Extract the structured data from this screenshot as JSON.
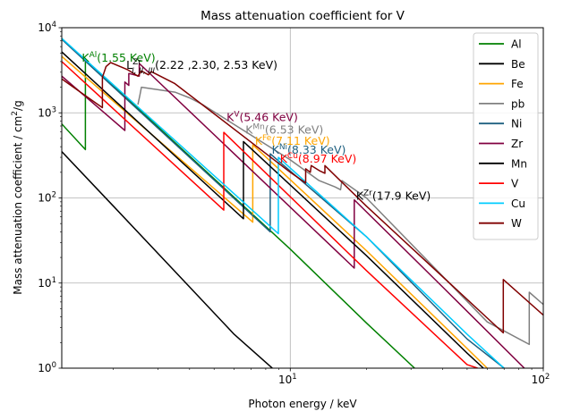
{
  "chart_data": {
    "type": "line",
    "title": "Mass attenuation coefficient for V",
    "xlabel": "Photon energy / keV",
    "ylabel": "Mass attenuation coefficient / cm",
    "ylabel_sup": "2",
    "ylabel_tail": "/g",
    "xscale": "log",
    "yscale": "log",
    "xlim": [
      1.25,
      100
    ],
    "ylim": [
      1,
      10000
    ],
    "grid": true,
    "legend_position": "top-right",
    "x_ticks": [
      {
        "value": 10,
        "base": "10",
        "exp": "1"
      },
      {
        "value": 100,
        "base": "10",
        "exp": "2"
      }
    ],
    "y_ticks": [
      {
        "value": 1,
        "base": "10",
        "exp": "0"
      },
      {
        "value": 10,
        "base": "10",
        "exp": "1"
      },
      {
        "value": 100,
        "base": "10",
        "exp": "2"
      },
      {
        "value": 1000,
        "base": "10",
        "exp": "3"
      },
      {
        "value": 10000,
        "base": "10",
        "exp": "4"
      }
    ],
    "series": [
      {
        "name": "Al",
        "color": "#008000",
        "points": [
          [
            1.25,
            740
          ],
          [
            1.55,
            370
          ],
          [
            1.55,
            4200
          ],
          [
            4,
            310
          ],
          [
            10,
            25
          ],
          [
            20,
            3.4
          ],
          [
            31,
            1
          ]
        ]
      },
      {
        "name": "Be",
        "color": "#000000",
        "points": [
          [
            1.25,
            350
          ],
          [
            2,
            80
          ],
          [
            4,
            9
          ],
          [
            6,
            2.5
          ],
          [
            10,
            0.65
          ]
        ]
      },
      {
        "name": "Fe",
        "color": "#ffa500",
        "points": [
          [
            1.25,
            4600
          ],
          [
            7.11,
            52
          ],
          [
            7.11,
            420
          ],
          [
            20,
            24
          ],
          [
            50,
            1.7
          ],
          [
            60,
            1
          ]
        ]
      },
      {
        "name": "pb",
        "color": "#808080",
        "points": [
          [
            2.5,
            1250
          ],
          [
            2.55,
            1650
          ],
          [
            2.58,
            2000
          ],
          [
            3.5,
            1750
          ],
          [
            4,
            1500
          ],
          [
            4.5,
            1250
          ],
          [
            10,
            280
          ],
          [
            13,
            160
          ],
          [
            15,
            135
          ],
          [
            15.8,
            125
          ],
          [
            16,
            160
          ],
          [
            20,
            100
          ],
          [
            60,
            3.5
          ],
          [
            88,
            1.9
          ],
          [
            88,
            7.8
          ],
          [
            100,
            5.6
          ]
        ]
      },
      {
        "name": "Ni",
        "color": "#1f6080",
        "points": [
          [
            1.25,
            7300
          ],
          [
            8.33,
            40
          ],
          [
            8.33,
            330
          ],
          [
            20,
            35
          ],
          [
            50,
            2.2
          ],
          [
            70,
            1
          ]
        ]
      },
      {
        "name": "Zr",
        "color": "#800040",
        "points": [
          [
            1.25,
            2700
          ],
          [
            2.22,
            620
          ],
          [
            2.22,
            2300
          ],
          [
            2.3,
            2100
          ],
          [
            2.3,
            2900
          ],
          [
            2.53,
            2700
          ],
          [
            2.53,
            3800
          ],
          [
            17.9,
            15
          ],
          [
            17.9,
            95
          ],
          [
            40,
            9
          ],
          [
            100,
            0.6
          ]
        ]
      },
      {
        "name": "Mn",
        "color": "#000000",
        "points": [
          [
            1.25,
            5200
          ],
          [
            6.53,
            57
          ],
          [
            6.53,
            460
          ],
          [
            20,
            21
          ],
          [
            50,
            1.5
          ],
          [
            58,
            1
          ]
        ]
      },
      {
        "name": "V",
        "color": "#ff0000",
        "points": [
          [
            1.25,
            4000
          ],
          [
            5.46,
            72
          ],
          [
            5.46,
            590
          ],
          [
            20,
            14
          ],
          [
            50,
            1.1
          ],
          [
            55,
            1
          ]
        ]
      },
      {
        "name": "Cu",
        "color": "#00ccff",
        "points": [
          [
            1.25,
            7500
          ],
          [
            8.97,
            38
          ],
          [
            8.97,
            300
          ],
          [
            20,
            35
          ],
          [
            50,
            2.5
          ],
          [
            70,
            1
          ]
        ]
      },
      {
        "name": "W",
        "color": "#800000",
        "points": [
          [
            1.25,
            2500
          ],
          [
            1.81,
            1150
          ],
          [
            1.81,
            2600
          ],
          [
            1.87,
            3500
          ],
          [
            1.95,
            3900
          ],
          [
            2.28,
            3200
          ],
          [
            2.5,
            2700
          ],
          [
            2.58,
            3100
          ],
          [
            2.75,
            2800
          ],
          [
            2.82,
            3050
          ],
          [
            3.5,
            2200
          ],
          [
            10,
            200
          ],
          [
            11.5,
            150
          ],
          [
            11.5,
            220
          ],
          [
            12,
            200
          ],
          [
            12.1,
            240
          ],
          [
            13,
            210
          ],
          [
            13.7,
            195
          ],
          [
            13.7,
            240
          ],
          [
            20,
            80
          ],
          [
            69.5,
            2.6
          ],
          [
            69.5,
            11
          ],
          [
            100,
            4.2
          ]
        ]
      }
    ],
    "annotations": [
      {
        "text": "K",
        "sup": "Al",
        "tail": "(1.55  KeV)",
        "color": "#008000",
        "x": 1.5,
        "y": 4000
      },
      {
        "text": "L",
        "sup": "Zr",
        "sub": "I, II, III",
        "tail": "(2.22 ,2.30, 2.53 KeV)",
        "color": "#000000",
        "x": 2.25,
        "y": 3300
      },
      {
        "text": "K",
        "sup": "V",
        "tail": "(5.46 KeV)",
        "color": "#800040",
        "x": 5.6,
        "y": 800
      },
      {
        "text": "K",
        "sup": "Mn",
        "tail": "(6.53  KeV)",
        "color": "#808080",
        "x": 6.65,
        "y": 570
      },
      {
        "text": "K",
        "sup": "Fe",
        "tail": "(7.11 KeV)",
        "color": "#ffa500",
        "x": 7.25,
        "y": 420
      },
      {
        "text": "K",
        "sup": "Ni",
        "tail": "(8.33 KeV)",
        "color": "#1f6080",
        "x": 8.45,
        "y": 330
      },
      {
        "text": "K",
        "sup": "Cu",
        "tail": "(8.97 KeV)",
        "color": "#ff0000",
        "x": 9.1,
        "y": 260
      },
      {
        "text": "K",
        "sup": "Zr",
        "tail": "(17.9 KeV)",
        "color": "#000000",
        "x": 18.2,
        "y": 95
      }
    ]
  }
}
